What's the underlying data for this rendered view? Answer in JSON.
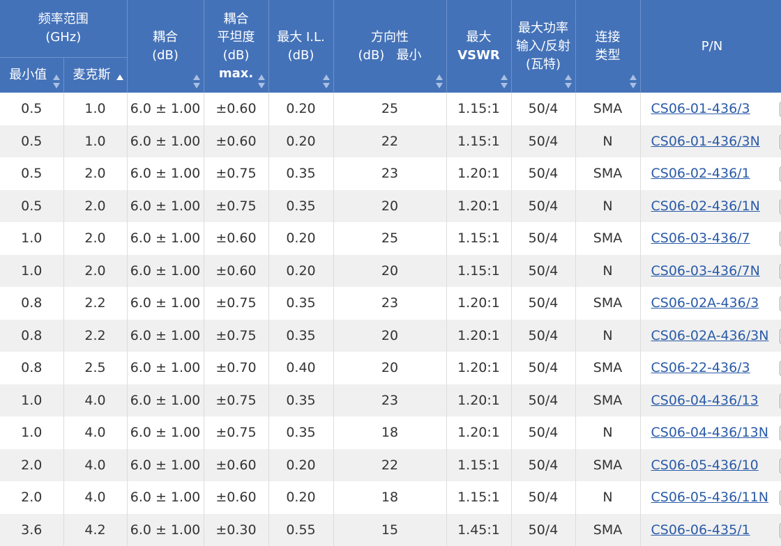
{
  "header": {
    "freq_range": "频率范围",
    "freq_unit": "(GHz)",
    "min": "最小值",
    "max": "麦克斯",
    "coupling": "耦合",
    "coupling_unit": "(dB)",
    "flatness_1": "耦合",
    "flatness_2": "平坦度",
    "flatness_unit": "(dB)",
    "flatness_max": "max.",
    "il": "最大 I.L.",
    "il_unit": "(dB)",
    "directivity": "方向性",
    "directivity_sub": "(dB)   最小",
    "vswr_1": "最大",
    "vswr_2": "VSWR",
    "power_1": "最大功率",
    "power_2": "输入/反射",
    "power_3": "(瓦特)",
    "conn_1": "连接",
    "conn_2": "类型",
    "pn": "P/N"
  },
  "rows": [
    {
      "min": "0.5",
      "max": "1.0",
      "coupling": "6.0 ± 1.00",
      "flatness": "±0.60",
      "il": "0.20",
      "directivity": "25",
      "vswr": "1.15:1",
      "power": "50/4",
      "conn": "SMA",
      "pn": "CS06-01-436/3"
    },
    {
      "min": "0.5",
      "max": "1.0",
      "coupling": "6.0 ± 1.00",
      "flatness": "±0.60",
      "il": "0.20",
      "directivity": "22",
      "vswr": "1.15:1",
      "power": "50/4",
      "conn": "N",
      "pn": "CS06-01-436/3N"
    },
    {
      "min": "0.5",
      "max": "2.0",
      "coupling": "6.0 ± 1.00",
      "flatness": "±0.75",
      "il": "0.35",
      "directivity": "23",
      "vswr": "1.20:1",
      "power": "50/4",
      "conn": "SMA",
      "pn": "CS06-02-436/1"
    },
    {
      "min": "0.5",
      "max": "2.0",
      "coupling": "6.0 ± 1.00",
      "flatness": "±0.75",
      "il": "0.35",
      "directivity": "20",
      "vswr": "1.20:1",
      "power": "50/4",
      "conn": "N",
      "pn": "CS06-02-436/1N"
    },
    {
      "min": "1.0",
      "max": "2.0",
      "coupling": "6.0 ± 1.00",
      "flatness": "±0.60",
      "il": "0.20",
      "directivity": "25",
      "vswr": "1.15:1",
      "power": "50/4",
      "conn": "SMA",
      "pn": "CS06-03-436/7"
    },
    {
      "min": "1.0",
      "max": "2.0",
      "coupling": "6.0 ± 1.00",
      "flatness": "±0.60",
      "il": "0.20",
      "directivity": "20",
      "vswr": "1.15:1",
      "power": "50/4",
      "conn": "N",
      "pn": "CS06-03-436/7N"
    },
    {
      "min": "0.8",
      "max": "2.2",
      "coupling": "6.0 ± 1.00",
      "flatness": "±0.75",
      "il": "0.35",
      "directivity": "23",
      "vswr": "1.20:1",
      "power": "50/4",
      "conn": "SMA",
      "pn": "CS06-02A-436/3"
    },
    {
      "min": "0.8",
      "max": "2.2",
      "coupling": "6.0 ± 1.00",
      "flatness": "±0.75",
      "il": "0.35",
      "directivity": "20",
      "vswr": "1.20:1",
      "power": "50/4",
      "conn": "N",
      "pn": "CS06-02A-436/3N"
    },
    {
      "min": "0.8",
      "max": "2.5",
      "coupling": "6.0 ± 1.00",
      "flatness": "±0.70",
      "il": "0.40",
      "directivity": "20",
      "vswr": "1.20:1",
      "power": "50/4",
      "conn": "SMA",
      "pn": "CS06-22-436/3"
    },
    {
      "min": "1.0",
      "max": "4.0",
      "coupling": "6.0 ± 1.00",
      "flatness": "±0.75",
      "il": "0.35",
      "directivity": "23",
      "vswr": "1.20:1",
      "power": "50/4",
      "conn": "SMA",
      "pn": "CS06-04-436/13"
    },
    {
      "min": "1.0",
      "max": "4.0",
      "coupling": "6.0 ± 1.00",
      "flatness": "±0.75",
      "il": "0.35",
      "directivity": "18",
      "vswr": "1.20:1",
      "power": "50/4",
      "conn": "N",
      "pn": "CS06-04-436/13N"
    },
    {
      "min": "2.0",
      "max": "4.0",
      "coupling": "6.0 ± 1.00",
      "flatness": "±0.60",
      "il": "0.20",
      "directivity": "22",
      "vswr": "1.15:1",
      "power": "50/4",
      "conn": "SMA",
      "pn": "CS06-05-436/10"
    },
    {
      "min": "2.0",
      "max": "4.0",
      "coupling": "6.0 ± 1.00",
      "flatness": "±0.60",
      "il": "0.20",
      "directivity": "18",
      "vswr": "1.15:1",
      "power": "50/4",
      "conn": "N",
      "pn": "CS06-05-436/11N"
    },
    {
      "min": "3.6",
      "max": "4.2",
      "coupling": "6.0 ± 1.00",
      "flatness": "±0.30",
      "il": "0.55",
      "directivity": "15",
      "vswr": "1.45:1",
      "power": "50/4",
      "conn": "SMA",
      "pn": "CS06-06-435/1"
    }
  ]
}
